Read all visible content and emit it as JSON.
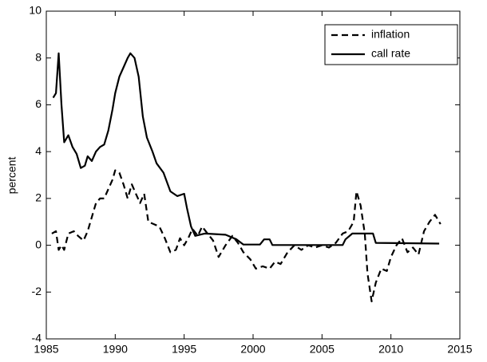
{
  "chart_data": {
    "type": "line",
    "ylabel": "percent",
    "xlim": [
      1985,
      2015
    ],
    "xticks": [
      1985,
      1990,
      1995,
      2000,
      2005,
      2010,
      2015
    ],
    "ylim": [
      -4,
      10
    ],
    "yticks": [
      -4,
      -2,
      0,
      2,
      4,
      6,
      8,
      10
    ],
    "legend": "upper right",
    "series": [
      {
        "name": "inflation",
        "color": "#000000",
        "dash": true,
        "x": [
          1985.4,
          1985.7,
          1985.9,
          1986.1,
          1986.3,
          1986.6,
          1987.0,
          1987.3,
          1987.7,
          1988.0,
          1988.3,
          1988.6,
          1988.9,
          1989.2,
          1989.5,
          1989.8,
          1990.0,
          1990.3,
          1990.6,
          1990.9,
          1991.2,
          1991.5,
          1991.8,
          1992.1,
          1992.4,
          1992.8,
          1993.2,
          1993.6,
          1994.0,
          1994.4,
          1994.7,
          1995.0,
          1995.3,
          1995.6,
          1996.0,
          1996.3,
          1996.7,
          1997.1,
          1997.5,
          1998.0,
          1998.5,
          1998.9,
          1999.3,
          1999.8,
          2000.2,
          2000.7,
          2001.2,
          2001.6,
          2002.0,
          2002.5,
          2003.0,
          2003.5,
          2004.0,
          2004.5,
          2005.0,
          2005.5,
          2006.0,
          2006.5,
          2006.9,
          2007.3,
          2007.5,
          2007.8,
          2008.1,
          2008.3,
          2008.6,
          2008.9,
          2009.3,
          2009.7,
          2010.0,
          2010.4,
          2010.8,
          2011.2,
          2011.6,
          2012.0,
          2012.4,
          2012.8,
          2013.2,
          2013.6
        ],
        "values": [
          0.5,
          0.6,
          -0.2,
          0.0,
          -0.2,
          0.5,
          0.6,
          0.4,
          0.2,
          0.6,
          1.2,
          1.8,
          2.0,
          2.0,
          2.4,
          2.8,
          3.2,
          3.1,
          2.6,
          2.0,
          2.6,
          2.2,
          1.8,
          2.2,
          1.0,
          0.9,
          0.8,
          0.3,
          -0.3,
          -0.2,
          0.3,
          0.0,
          0.3,
          0.7,
          0.4,
          0.8,
          0.5,
          0.2,
          -0.5,
          0.0,
          0.4,
          0.1,
          -0.3,
          -0.6,
          -1.0,
          -0.9,
          -1.0,
          -0.7,
          -0.8,
          -0.3,
          0.0,
          -0.2,
          0.0,
          -0.1,
          0.0,
          -0.1,
          0.1,
          0.5,
          0.6,
          1.0,
          2.3,
          1.7,
          0.5,
          -1.2,
          -2.4,
          -1.6,
          -1.0,
          -1.1,
          -0.5,
          0.0,
          0.3,
          -0.3,
          -0.1,
          -0.4,
          0.6,
          1.0,
          1.3,
          0.9
        ]
      },
      {
        "name": "call rate",
        "color": "#000000",
        "dash": false,
        "x": [
          1985.5,
          1985.7,
          1985.9,
          1986.1,
          1986.3,
          1986.6,
          1986.9,
          1987.2,
          1987.5,
          1987.8,
          1988.0,
          1988.3,
          1988.6,
          1988.9,
          1989.2,
          1989.5,
          1989.8,
          1990.0,
          1990.3,
          1990.6,
          1990.9,
          1991.1,
          1991.4,
          1991.7,
          1992.0,
          1992.3,
          1992.7,
          1993.0,
          1993.5,
          1994.0,
          1994.5,
          1995.0,
          1995.2,
          1995.5,
          1995.8,
          1996.5,
          1998.0,
          1998.8,
          1999.3,
          2000.5,
          2000.8,
          2001.2,
          2001.4,
          2006.5,
          2006.7,
          2007.2,
          2008.7,
          2008.9,
          2013.5
        ],
        "values": [
          6.3,
          6.5,
          8.2,
          6.0,
          4.4,
          4.7,
          4.2,
          3.9,
          3.3,
          3.4,
          3.8,
          3.6,
          4.0,
          4.2,
          4.3,
          4.9,
          5.8,
          6.5,
          7.2,
          7.6,
          8.0,
          8.2,
          8.0,
          7.2,
          5.5,
          4.6,
          4.0,
          3.5,
          3.1,
          2.3,
          2.1,
          2.2,
          1.6,
          0.8,
          0.4,
          0.5,
          0.45,
          0.25,
          0.03,
          0.03,
          0.25,
          0.25,
          0.01,
          0.01,
          0.25,
          0.5,
          0.5,
          0.1,
          0.07
        ]
      }
    ]
  }
}
